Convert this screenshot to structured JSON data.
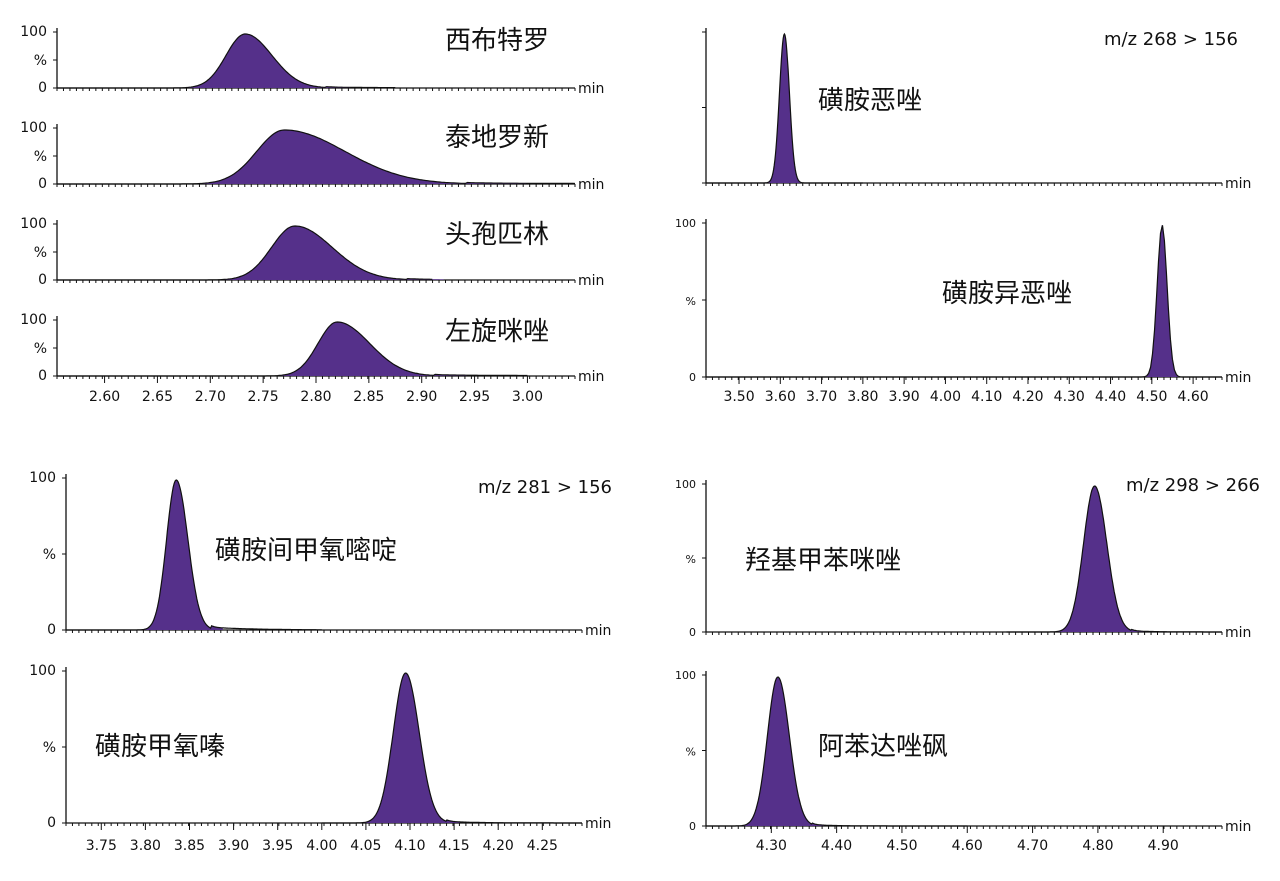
{
  "colors": {
    "peak_fill": "#55308A",
    "trace": "#111111",
    "axis": "#111111"
  },
  "chart_data": [
    {
      "type": "area",
      "title": "",
      "transition": "",
      "xlabel": "min",
      "y_ticks": [
        "100",
        "%",
        "0"
      ],
      "x_ticks": [
        "2.60",
        "2.65",
        "2.70",
        "2.75",
        "2.80",
        "2.85",
        "2.90",
        "2.95",
        "3.00"
      ],
      "xlim": [
        2.555,
        3.045
      ],
      "series": [
        {
          "name": "西布特罗",
          "peak_rt": 2.733,
          "sigma": 0.018,
          "tail": 0.02,
          "range": [
            2.555,
            2.875
          ]
        },
        {
          "name": "泰地罗新",
          "peak_rt": 2.77,
          "sigma": 0.026,
          "tail": 0.06,
          "range": [
            2.555,
            3.045
          ]
        },
        {
          "name": "头孢匹林",
          "peak_rt": 2.78,
          "sigma": 0.022,
          "tail": 0.03,
          "range": [
            2.555,
            2.91
          ]
        },
        {
          "name": "左旋咪唑",
          "peak_rt": 2.82,
          "sigma": 0.018,
          "tail": 0.035,
          "range": [
            2.555,
            3.0
          ]
        }
      ]
    },
    {
      "type": "area",
      "title": "",
      "transition": "m/z 268 > 156",
      "xlabel": "min",
      "x_ticks": [
        "3.50",
        "3.60",
        "3.70",
        "3.80",
        "3.90",
        "4.00",
        "4.10",
        "4.20",
        "4.30",
        "4.40",
        "4.50",
        "4.60"
      ],
      "xlim": [
        3.42,
        4.67
      ],
      "series": [
        {
          "name": "磺胺恶唑",
          "peak_rt": 3.61,
          "sigma": 0.012,
          "tail": 0.0,
          "range": [
            3.42,
            3.8
          ],
          "y_ticks": [
            "",
            "",
            ""
          ]
        },
        {
          "name": "磺胺异恶唑",
          "peak_rt": 4.525,
          "sigma": 0.012,
          "tail": 0.0,
          "range": [
            3.42,
            4.67
          ],
          "y_ticks": [
            "100",
            "%",
            "0"
          ]
        }
      ]
    },
    {
      "type": "area",
      "title": "",
      "transition": "m/z 281 > 156",
      "xlabel": "min",
      "y_ticks": [
        "100",
        "%",
        "0"
      ],
      "x_ticks": [
        "3.75",
        "3.80",
        "3.85",
        "3.90",
        "3.95",
        "4.00",
        "4.05",
        "4.10",
        "4.15",
        "4.20",
        "4.25"
      ],
      "xlim": [
        3.71,
        4.295
      ],
      "series": [
        {
          "name": "磺胺间甲氧嘧啶",
          "peak_rt": 3.835,
          "sigma": 0.011,
          "tail": 0.01,
          "range": [
            3.71,
            4.0
          ]
        },
        {
          "name": "磺胺甲氧嗪",
          "peak_rt": 4.095,
          "sigma": 0.014,
          "tail": 0.005,
          "range": [
            4.0,
            4.295
          ]
        }
      ]
    },
    {
      "type": "area",
      "title": "",
      "transition": "m/z 298 > 266",
      "xlabel": "min",
      "y_ticks": [
        "100",
        "%",
        "0"
      ],
      "x_ticks": [
        "4.30",
        "4.40",
        "4.50",
        "4.60",
        "4.70",
        "4.80",
        "4.90"
      ],
      "xlim": [
        4.2,
        4.99
      ],
      "series": [
        {
          "name": "羟基甲苯咪唑",
          "peak_rt": 4.795,
          "sigma": 0.017,
          "tail": 0.005,
          "range": [
            4.66,
            4.99
          ]
        },
        {
          "name": "阿苯达唑砜",
          "peak_rt": 4.31,
          "sigma": 0.016,
          "tail": 0.005,
          "range": [
            4.2,
            4.6
          ]
        }
      ]
    }
  ]
}
